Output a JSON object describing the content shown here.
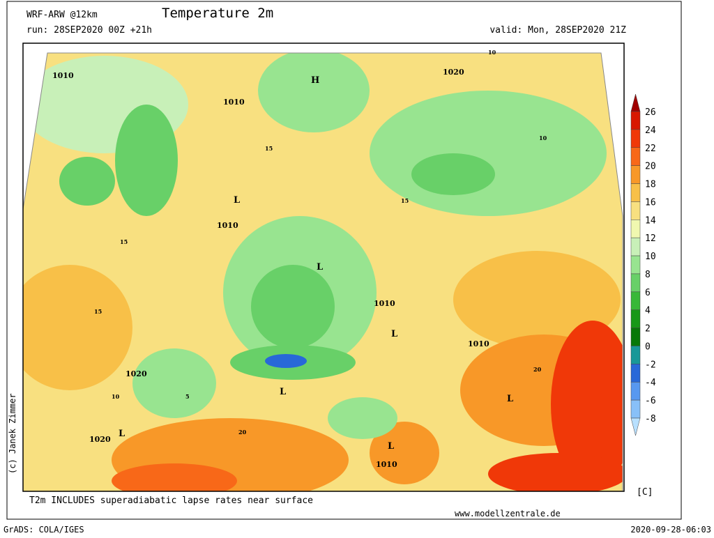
{
  "header": {
    "model": "WRF-ARW @12km",
    "title": "Temperature 2m",
    "run": "run: 28SEP2020 00Z +21h",
    "valid": "valid: Mon, 28SEP2020 21Z"
  },
  "map": {
    "labels": [
      "1010",
      "1020",
      "H",
      "1010",
      "L",
      "1010",
      "L",
      "1010",
      "L",
      "1010",
      "1020",
      "L",
      "L",
      "1020",
      "L",
      "L",
      "1010",
      "15",
      "15",
      "15",
      "10",
      "10",
      "20",
      "20",
      "5",
      "15",
      "10"
    ]
  },
  "colorbar": {
    "levels": [
      26,
      24,
      22,
      20,
      18,
      16,
      14,
      12,
      10,
      8,
      6,
      4,
      2,
      0,
      -2,
      -4,
      -6,
      -8
    ],
    "colors": [
      "#a00000",
      "#d81800",
      "#f03808",
      "#f86818",
      "#f89828",
      "#f8c048",
      "#f8e080",
      "#f0f8b0",
      "#c8f0b8",
      "#98e490",
      "#68d068",
      "#38b838",
      "#189818",
      "#087808",
      "#189898",
      "#2868d8",
      "#5898f0",
      "#88c0f8",
      "#b8e0ff"
    ],
    "unit": "[C]"
  },
  "footer": {
    "note": "T2m INCLUDES superadiabatic lapse rates near surface",
    "site": "www.modellzentrale.de",
    "software": "GrADS: COLA/IGES",
    "timestamp": "2020-09-28-06:03",
    "credit": "(c) Janek Zimmer"
  }
}
